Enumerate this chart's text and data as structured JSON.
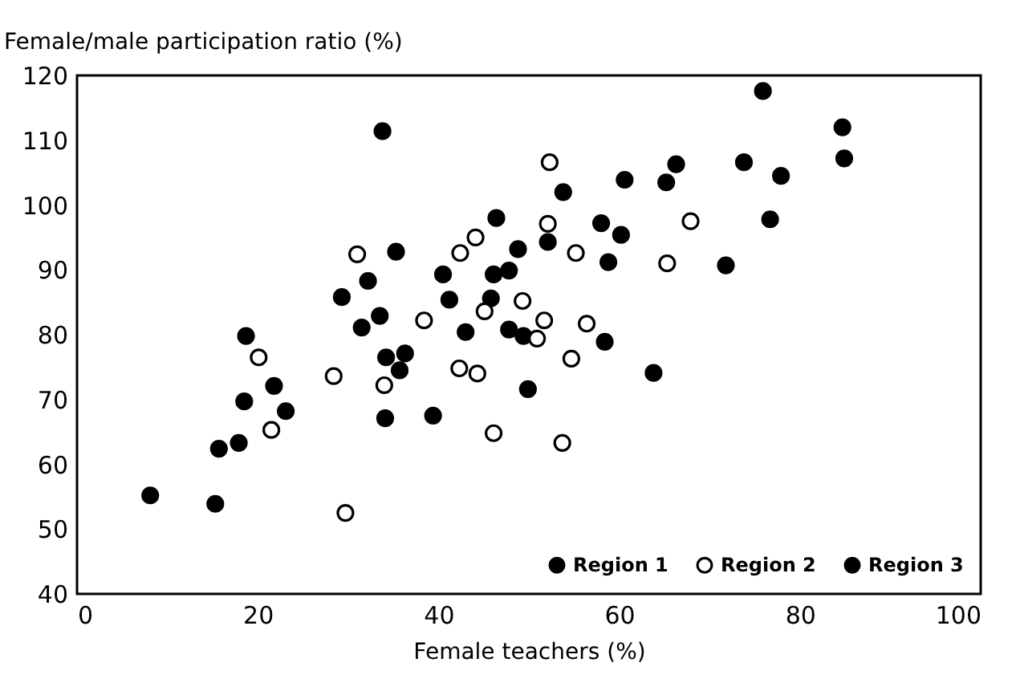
{
  "chart_data": {
    "type": "scatter",
    "xlabel": "Female teachers (%)",
    "ylabel": "Female/male participation ratio (%)",
    "xlim": [
      0,
      100
    ],
    "xticks": [
      0,
      20,
      40,
      60,
      80,
      100
    ],
    "ylim": [
      40,
      120
    ],
    "yticks": [
      40,
      50,
      60,
      70,
      80,
      90,
      100,
      110,
      120
    ],
    "grid": false,
    "legend": "bottom right",
    "marker": "circle",
    "series": [
      {
        "name": "Region 1",
        "color": "#000000",
        "x": [
          8.1,
          15.3,
          15.7,
          17.9,
          18.5,
          18.7,
          21.8,
          23.1,
          29.3,
          32.2,
          31.5,
          33.8,
          33.5,
          34.2,
          35.3,
          35.7,
          36.3,
          34.1,
          39.4,
          40.5,
          41.2,
          43.0,
          46.4,
          46.1,
          47.8,
          45.8,
          47.8,
          48.8,
          49.4,
          49.9,
          52.1,
          53.8,
          58.0,
          60.2,
          58.8,
          58.4,
          60.6,
          63.8,
          65.2,
          66.3,
          75.9,
          84.7,
          84.9,
          73.8,
          77.9,
          76.7,
          71.8
        ],
        "values": [
          55.2,
          53.9,
          62.4,
          63.3,
          69.7,
          79.8,
          72.1,
          68.2,
          85.8,
          88.3,
          81.1,
          111.4,
          82.9,
          76.5,
          92.8,
          74.5,
          77.1,
          67.1,
          67.5,
          89.3,
          85.4,
          80.4,
          98.0,
          89.3,
          89.9,
          85.6,
          80.8,
          93.2,
          79.8,
          71.6,
          94.3,
          102.0,
          97.2,
          95.4,
          91.2,
          78.9,
          103.9,
          74.1,
          103.5,
          106.3,
          117.6,
          112.0,
          107.2,
          106.6,
          104.5,
          97.8,
          90.7
        ]
      },
      {
        "name": "Region 2",
        "color": "#ffffff",
        "x": [
          31.0,
          20.1,
          28.4,
          21.5,
          29.7,
          52.3,
          52.1,
          55.2,
          44.1,
          42.4,
          38.4,
          45.1,
          49.3,
          51.7,
          50.9,
          56.4,
          54.7,
          42.3,
          44.3,
          46.1,
          53.7,
          34.0,
          65.3,
          67.9
        ],
        "values": [
          92.4,
          76.5,
          73.6,
          65.3,
          52.5,
          106.6,
          97.1,
          92.6,
          95.0,
          92.6,
          82.2,
          83.6,
          85.2,
          82.2,
          79.4,
          81.7,
          76.3,
          74.8,
          74.0,
          64.8,
          63.3,
          72.2,
          91.0,
          97.5
        ]
      },
      {
        "name": "Region 3",
        "color": "#000000"
      }
    ]
  }
}
